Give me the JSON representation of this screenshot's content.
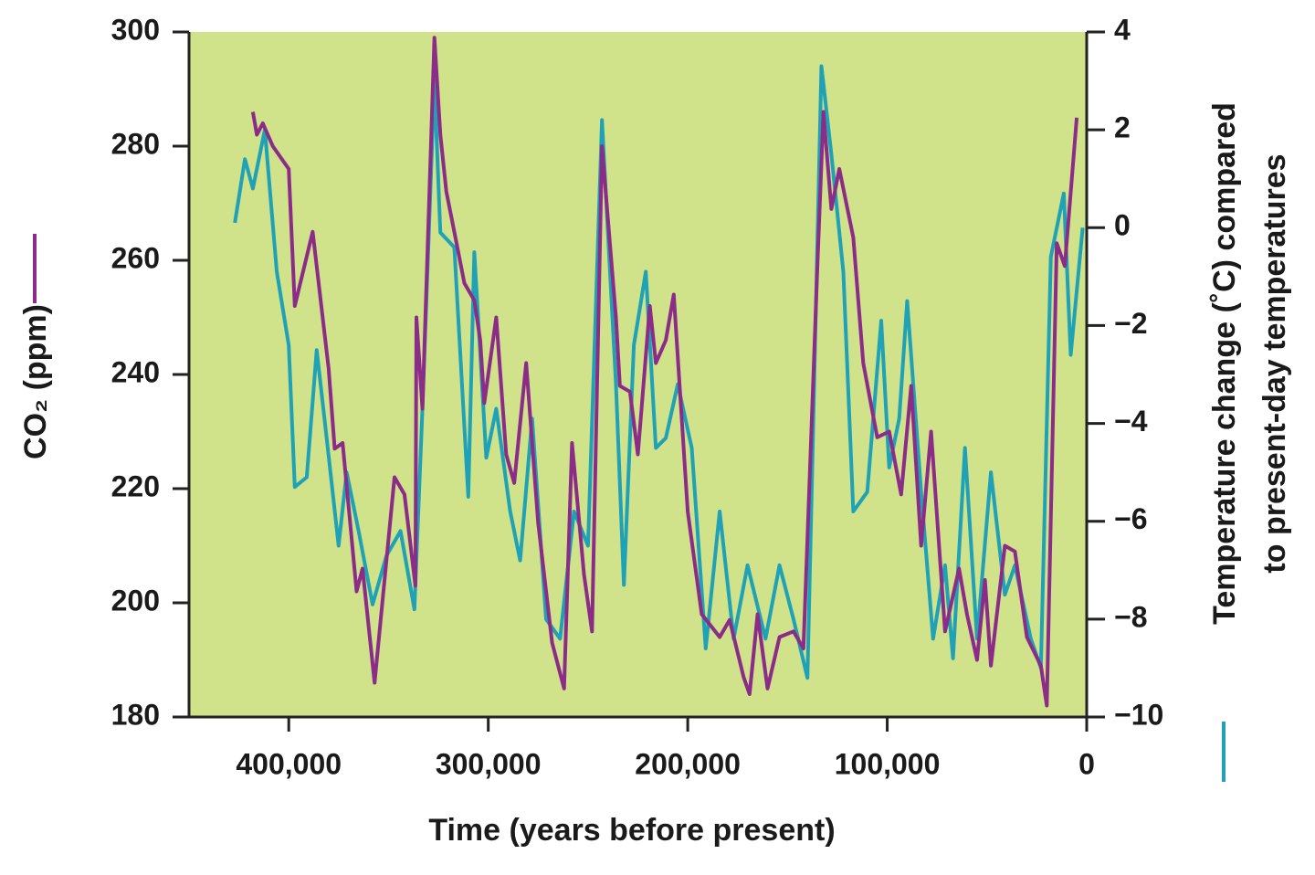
{
  "chart_data": {
    "type": "line",
    "xlabel": "Time (years before present)",
    "ylabel": "CO₂ (ppm)",
    "y2label": [
      "Temperature change (˚C) compared",
      "to present-day temperatures"
    ],
    "xlim": [
      450000,
      0
    ],
    "xticks": [
      {
        "value": 400000,
        "label": "400,000"
      },
      {
        "value": 300000,
        "label": "300,000"
      },
      {
        "value": 200000,
        "label": "200,000"
      },
      {
        "value": 100000,
        "label": "100,000"
      },
      0
    ],
    "ylim": [
      180,
      300
    ],
    "yticks": [
      180,
      200,
      220,
      240,
      260,
      280,
      300
    ],
    "y2lim": [
      -10,
      4
    ],
    "y2ticks": [
      {
        "value": -10,
        "label": "−10"
      },
      {
        "value": -8,
        "label": "−8"
      },
      {
        "value": -6,
        "label": "−6"
      },
      {
        "value": -4,
        "label": "−4"
      },
      {
        "value": -2,
        "label": "−2"
      },
      0,
      2,
      4
    ],
    "plot_background": "#d0e28a",
    "series": [
      {
        "color": "#8b2c88",
        "axis": "y",
        "x": [
          418000,
          416000,
          413000,
          408000,
          400000,
          397000,
          388000,
          380000,
          377000,
          373000,
          366000,
          363000,
          357000,
          347000,
          342000,
          336500,
          336000,
          333000,
          327000,
          324000,
          321000,
          317000,
          312000,
          307000,
          304000,
          302000,
          296000,
          291000,
          287000,
          281000,
          275000,
          268000,
          262000,
          258000,
          252000,
          248000,
          243000,
          236000,
          234000,
          229000,
          225000,
          219000,
          216000,
          211000,
          207000,
          200000,
          193000,
          184000,
          179000,
          172000,
          169000,
          165000,
          160000,
          154000,
          147000,
          142000,
          135000,
          132000,
          128000,
          124000,
          117000,
          112000,
          105000,
          99000,
          93000,
          88000,
          83000,
          78000,
          71000,
          64000,
          60000,
          55000,
          51000,
          48000,
          41000,
          36000,
          30000,
          23000,
          20000,
          15000,
          11000,
          5000
        ],
        "values": [
          286,
          282,
          284,
          280,
          276,
          252,
          265,
          241,
          227,
          228,
          202,
          206,
          186,
          222,
          219,
          203,
          250,
          234,
          299,
          282,
          272,
          265,
          256,
          253,
          246,
          235,
          250,
          226,
          221,
          242,
          214,
          193,
          185,
          228,
          205,
          195,
          280,
          250,
          238,
          237,
          226,
          252,
          242,
          246,
          254,
          216,
          198,
          194,
          197,
          187,
          184,
          198,
          185,
          194,
          195,
          192,
          259,
          286,
          269,
          276,
          264,
          242,
          229,
          230,
          219,
          238,
          210,
          230,
          195,
          206,
          198,
          190,
          204,
          189,
          210,
          209,
          194,
          189,
          182,
          263,
          259,
          285
        ]
      },
      {
        "color": "#1fa2b6",
        "axis": "y2",
        "x": [
          427000,
          422000,
          418000,
          412000,
          406000,
          400000,
          397000,
          391000,
          386000,
          381000,
          375000,
          371000,
          365000,
          358000,
          351000,
          344000,
          337000,
          333000,
          327000,
          324000,
          317000,
          310000,
          307000,
          301000,
          296000,
          289000,
          284000,
          278000,
          271000,
          264000,
          257000,
          250000,
          243000,
          236000,
          232000,
          227000,
          221000,
          216000,
          211000,
          205000,
          198000,
          191000,
          184000,
          177000,
          170000,
          161000,
          154000,
          147000,
          140000,
          133000,
          128000,
          122000,
          117000,
          110000,
          103000,
          99000,
          94000,
          90000,
          83000,
          77000,
          71000,
          67000,
          61000,
          55000,
          48000,
          41000,
          36000,
          28000,
          23000,
          18000,
          11500,
          8000,
          2000
        ],
        "values": [
          0.1,
          1.4,
          0.8,
          2.0,
          -0.9,
          -2.4,
          -5.3,
          -5.1,
          -2.5,
          -4.3,
          -6.5,
          -5.0,
          -6.2,
          -7.7,
          -6.7,
          -6.2,
          -7.8,
          -3.7,
          3.0,
          -0.1,
          -0.4,
          -5.5,
          -0.5,
          -4.7,
          -3.7,
          -5.8,
          -6.8,
          -3.9,
          -8.0,
          -8.4,
          -5.8,
          -6.5,
          2.2,
          -3.2,
          -7.3,
          -2.4,
          -0.9,
          -4.5,
          -4.3,
          -3.2,
          -4.5,
          -8.6,
          -5.8,
          -8.4,
          -6.9,
          -8.4,
          -6.9,
          -8.0,
          -9.2,
          3.3,
          1.5,
          -0.9,
          -5.8,
          -5.4,
          -1.9,
          -4.9,
          -3.9,
          -1.5,
          -5.4,
          -8.4,
          -6.9,
          -8.8,
          -4.5,
          -8.4,
          -5.0,
          -7.5,
          -6.9,
          -8.4,
          -9.0,
          -0.6,
          0.7,
          -2.6,
          0.0
        ]
      }
    ]
  }
}
